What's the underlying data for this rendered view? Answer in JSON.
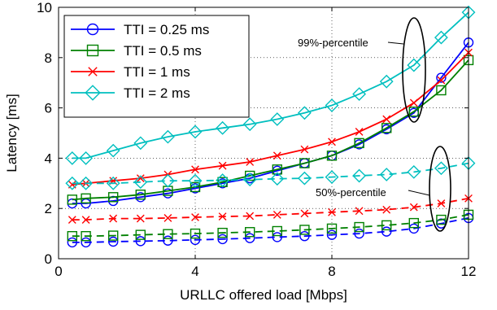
{
  "chart_data": {
    "type": "line",
    "xlabel": "URLLC offered load [Mbps]",
    "ylabel": "Latency [ms]",
    "xlim": [
      0,
      12
    ],
    "ylim": [
      0,
      10
    ],
    "xticks": [
      "0",
      "4",
      "8",
      "12"
    ],
    "yticks": [
      "0",
      "2",
      "4",
      "6",
      "8",
      "10"
    ],
    "grid": "dotted",
    "legend_position": "top-left",
    "x": [
      0.4,
      0.8,
      1.6,
      2.4,
      3.2,
      4.0,
      4.8,
      5.6,
      6.4,
      7.2,
      8.0,
      8.8,
      9.6,
      10.4,
      11.2,
      12.0
    ],
    "series": [
      {
        "name": "TTI = 0.25 ms",
        "color": "#0000ff",
        "marker": "circle",
        "line": "solid",
        "percentile": "99",
        "values": [
          2.2,
          2.2,
          2.3,
          2.45,
          2.6,
          2.8,
          3.0,
          3.2,
          3.5,
          3.8,
          4.1,
          4.55,
          5.15,
          5.8,
          7.2,
          8.6
        ]
      },
      {
        "name": "TTI = 0.5 ms",
        "color": "#008000",
        "marker": "square",
        "line": "solid",
        "percentile": "99",
        "values": [
          2.35,
          2.4,
          2.45,
          2.55,
          2.7,
          2.85,
          3.05,
          3.3,
          3.55,
          3.8,
          4.1,
          4.6,
          5.2,
          5.85,
          6.7,
          7.9
        ]
      },
      {
        "name": "TTI = 1 ms",
        "color": "#ff0000",
        "marker": "x",
        "line": "solid",
        "percentile": "99",
        "values": [
          2.95,
          3.0,
          3.1,
          3.2,
          3.35,
          3.55,
          3.7,
          3.85,
          4.1,
          4.35,
          4.65,
          5.05,
          5.55,
          6.2,
          7.1,
          8.2
        ]
      },
      {
        "name": "TTI = 2 ms",
        "color": "#00bfbf",
        "marker": "diamond",
        "line": "solid",
        "percentile": "99",
        "values": [
          4.0,
          4.0,
          4.3,
          4.6,
          4.85,
          5.05,
          5.2,
          5.35,
          5.55,
          5.8,
          6.1,
          6.55,
          7.05,
          7.7,
          8.8,
          9.8
        ]
      },
      {
        "name": "TTI = 0.25 ms",
        "color": "#0000ff",
        "marker": "circle",
        "line": "dashed",
        "percentile": "50",
        "values": [
          0.65,
          0.65,
          0.68,
          0.7,
          0.72,
          0.75,
          0.78,
          0.82,
          0.86,
          0.9,
          0.95,
          1.0,
          1.08,
          1.2,
          1.4,
          1.62
        ]
      },
      {
        "name": "TTI = 0.5 ms",
        "color": "#008000",
        "marker": "square",
        "line": "dashed",
        "percentile": "50",
        "values": [
          0.9,
          0.9,
          0.92,
          0.95,
          0.98,
          1.0,
          1.03,
          1.06,
          1.1,
          1.15,
          1.2,
          1.26,
          1.33,
          1.42,
          1.55,
          1.75
        ]
      },
      {
        "name": "TTI = 1 ms",
        "color": "#ff0000",
        "marker": "x",
        "line": "dashed",
        "percentile": "50",
        "values": [
          1.55,
          1.55,
          1.6,
          1.6,
          1.62,
          1.65,
          1.68,
          1.7,
          1.75,
          1.8,
          1.85,
          1.9,
          1.95,
          2.05,
          2.2,
          2.4
        ]
      },
      {
        "name": "TTI = 2 ms",
        "color": "#00bfbf",
        "marker": "diamond",
        "line": "dashed",
        "percentile": "50",
        "values": [
          3.0,
          3.0,
          3.0,
          3.05,
          3.1,
          3.1,
          3.12,
          3.15,
          3.18,
          3.2,
          3.25,
          3.3,
          3.35,
          3.45,
          3.6,
          3.8
        ]
      }
    ],
    "legend": [
      "TTI = 0.25 ms",
      "TTI = 0.5 ms",
      "TTI = 1 ms",
      "TTI = 2 ms"
    ],
    "annotations": [
      {
        "text": "99%-percentile"
      },
      {
        "text": "50%-percentile"
      }
    ]
  }
}
